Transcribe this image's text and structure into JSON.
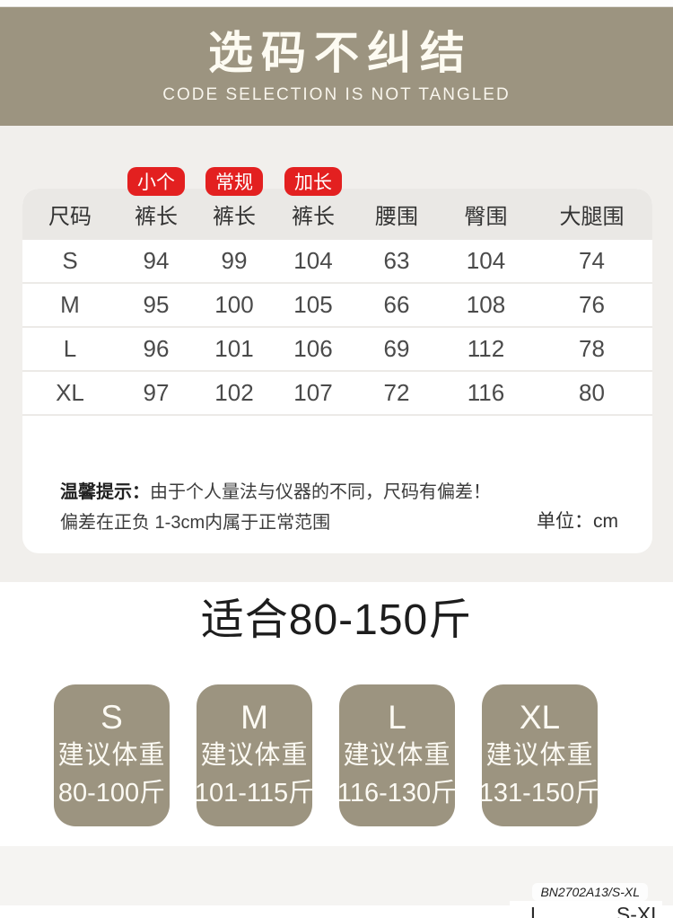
{
  "header": {
    "title": "选码不纠结",
    "subtitle": "CODE SELECTION IS NOT TANGLED"
  },
  "size_table": {
    "badges": [
      "小个",
      "常规",
      "加长"
    ],
    "columns": [
      "尺码",
      "裤长",
      "裤长",
      "裤长",
      "腰围",
      "臀围",
      "大腿围"
    ],
    "rows": [
      {
        "size": "S",
        "values": [
          "94",
          "99",
          "104",
          "63",
          "104",
          "74"
        ]
      },
      {
        "size": "M",
        "values": [
          "95",
          "100",
          "105",
          "66",
          "108",
          "76"
        ]
      },
      {
        "size": "L",
        "values": [
          "96",
          "101",
          "106",
          "69",
          "112",
          "78"
        ]
      },
      {
        "size": "XL",
        "values": [
          "97",
          "102",
          "107",
          "72",
          "116",
          "80"
        ]
      }
    ],
    "note_label": "温馨提示：",
    "note_line1": "由于个人量法与仪器的不同，尺码有偏差！",
    "note_line2": "偏差在正负 1-3cm内属于正常范围",
    "unit": "单位：cm"
  },
  "fit_title": "适合80-150斤",
  "weight_cards": [
    {
      "size": "S",
      "label": "建议体重",
      "range": "80-100斤"
    },
    {
      "size": "M",
      "label": "建议体重",
      "range": "101-115斤"
    },
    {
      "size": "L",
      "label": "建议体重",
      "range": "116-130斤"
    },
    {
      "size": "XL",
      "label": "建议体重",
      "range": "131-150斤"
    }
  ],
  "footer": {
    "product_code": "BN2702A13/S-XL",
    "partial_line": "L..........., S-XL"
  },
  "colors": {
    "khaki": "#9c9480",
    "badge_red": "#e32020",
    "page_gray": "#f1efec",
    "table_head_gray": "#eae8e5",
    "bottom_gray": "#f5f4f2"
  }
}
